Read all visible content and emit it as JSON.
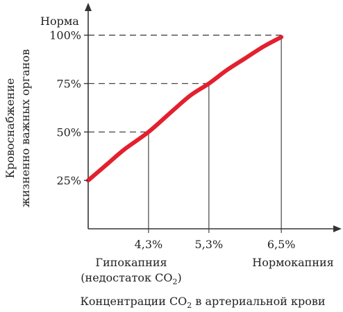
{
  "chart_data": {
    "type": "line",
    "ylabel_top": "Норма",
    "ylabel_line1": "Кровоснабжение",
    "ylabel_line2": "жизненно важных органов",
    "xlabel_prefix": "Концентрации CO",
    "xlabel_sub": "2",
    "xlabel_suffix": " в артериальной крови",
    "y_ticks": [
      {
        "value": 25,
        "label": "25%"
      },
      {
        "value": 50,
        "label": "50%"
      },
      {
        "value": 75,
        "label": "75%"
      },
      {
        "value": 100,
        "label": "100%"
      }
    ],
    "x_ticks": [
      {
        "value": 4.3,
        "label": "4,3%"
      },
      {
        "value": 5.3,
        "label": "5,3%"
      },
      {
        "value": 6.5,
        "label": "6,5%"
      }
    ],
    "xlim": [
      3.3,
      7.2
    ],
    "ylim": [
      0,
      116
    ],
    "series": [
      {
        "color": "#e3202e",
        "x": [
          3.3,
          3.6,
          3.9,
          4.3,
          4.7,
          5.0,
          5.3,
          5.6,
          5.9,
          6.2,
          6.5
        ],
        "y": [
          25,
          33,
          41,
          50,
          61,
          69,
          75,
          82,
          88,
          94,
          99
        ]
      }
    ],
    "guides": [
      {
        "x": 4.3,
        "y": 50
      },
      {
        "x": 5.3,
        "y": 75
      },
      {
        "x": 6.5,
        "y": 100
      }
    ],
    "annotations": {
      "hypocapnia": "Гипокапния",
      "hypocapnia_sub_prefix": "(недостаток CO",
      "hypocapnia_sub_sub": "2",
      "hypocapnia_sub_suffix": ")",
      "normocapnia": "Нормокапния"
    }
  }
}
